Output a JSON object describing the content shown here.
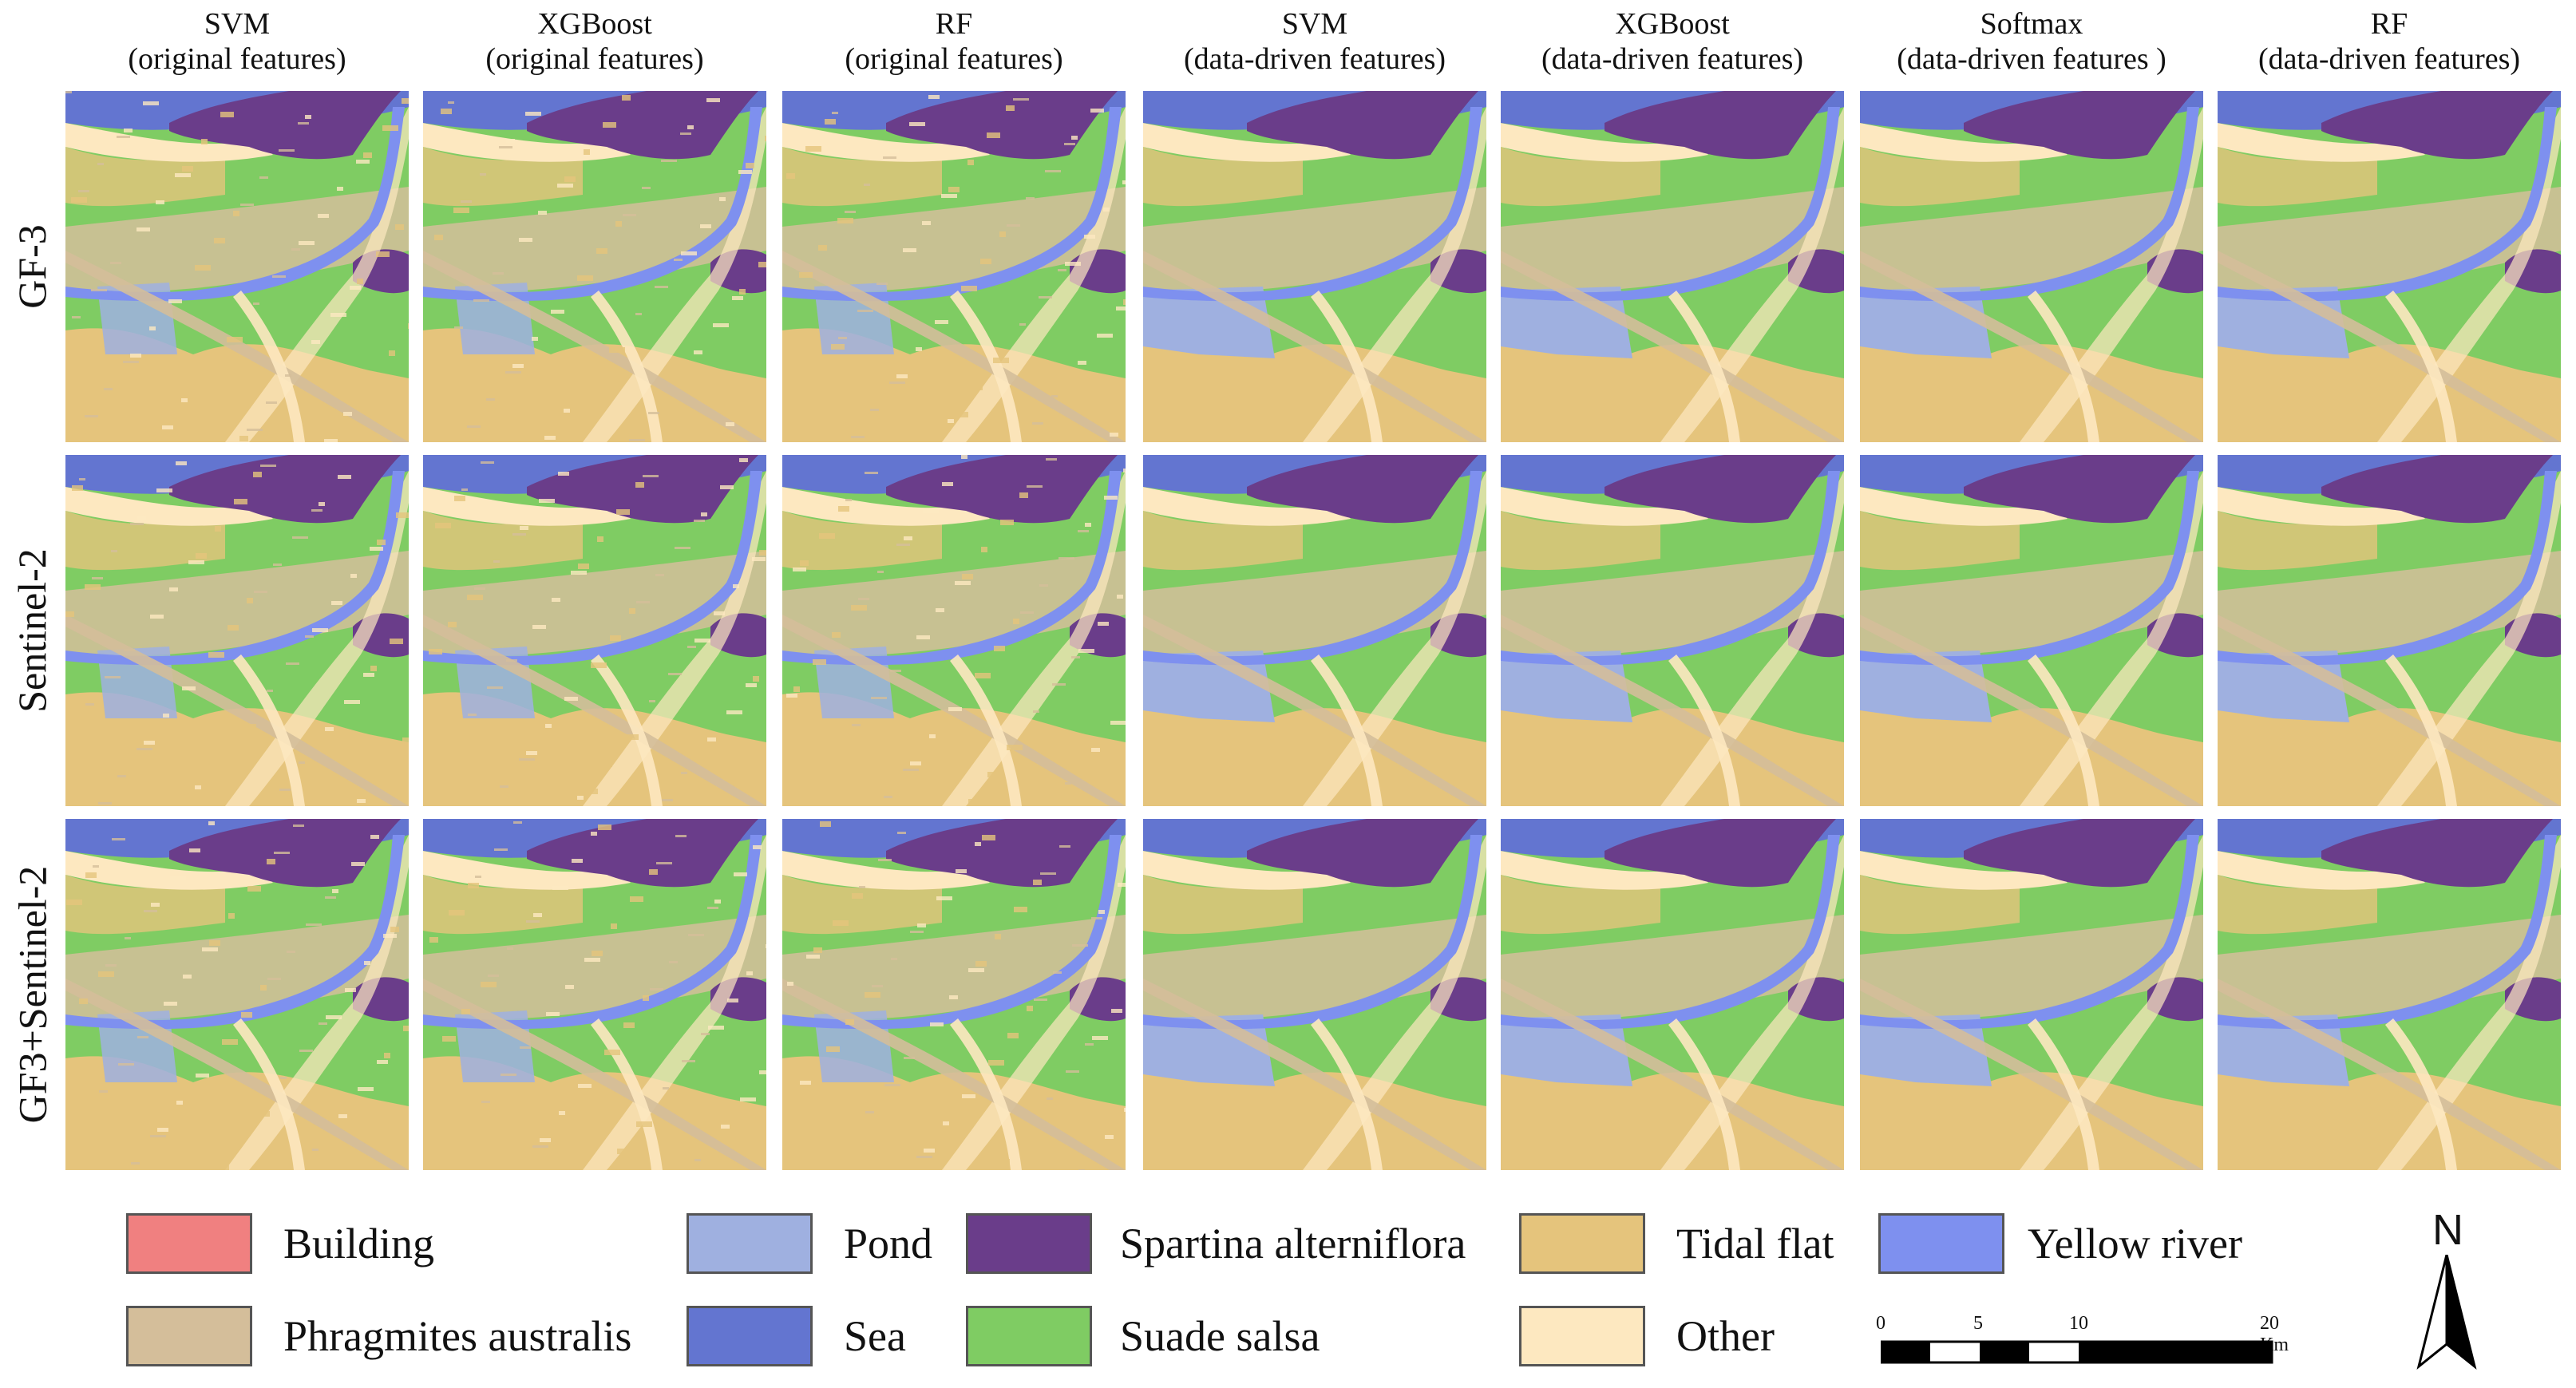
{
  "columns": [
    {
      "title": "SVM",
      "subtitle": "(original features)"
    },
    {
      "title": "XGBoost",
      "subtitle": "(original features)"
    },
    {
      "title": "RF",
      "subtitle": "(original features)"
    },
    {
      "title": "SVM",
      "subtitle": "(data-driven features)"
    },
    {
      "title": "XGBoost",
      "subtitle": "(data-driven features)"
    },
    {
      "title": "Softmax",
      "subtitle": "(data-driven features )"
    },
    {
      "title": "RF",
      "subtitle": "(data-driven features)"
    }
  ],
  "rows": [
    "GF-3",
    "Sentinel-2",
    "GF3+Sentinel-2"
  ],
  "legend": [
    {
      "label": "Building",
      "color": "#f08080"
    },
    {
      "label": "Pond",
      "color": "#9fb0e0"
    },
    {
      "label": "Spartina alterniflora",
      "color": "#6a3d8a"
    },
    {
      "label": "Tidal flat",
      "color": "#e5c47c"
    },
    {
      "label": "Yellow river",
      "color": "#7e90ef"
    },
    {
      "label": "Phragmites australis",
      "color": "#d4be9a"
    },
    {
      "label": "Sea",
      "color": "#6375d0"
    },
    {
      "label": "Suade salsa",
      "color": "#7fcc63"
    },
    {
      "label": "Other",
      "color": "#fde8c0"
    }
  ],
  "scalebar": {
    "ticks": [
      "0",
      "5",
      "10",
      "20 Km"
    ]
  },
  "north_label": "N"
}
